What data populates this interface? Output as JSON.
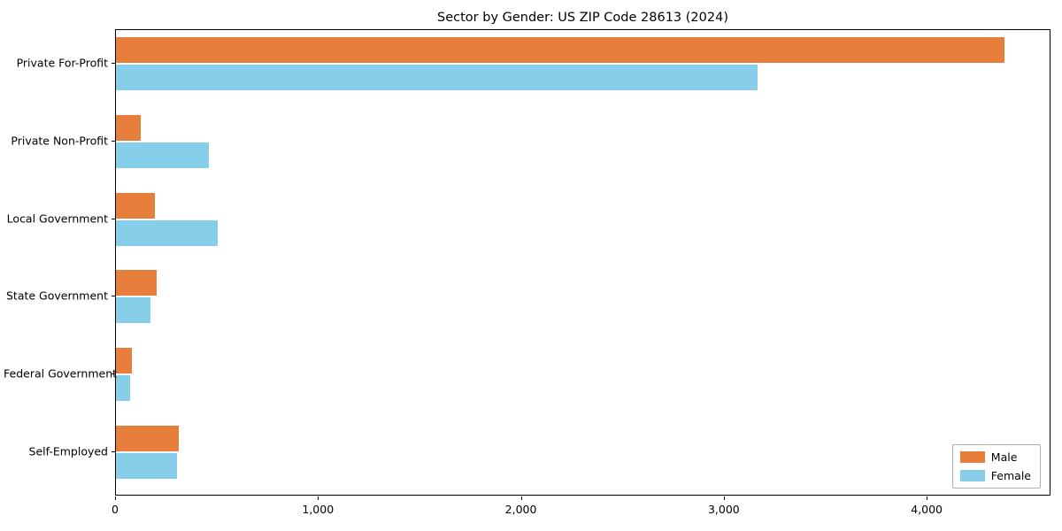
{
  "chart_data": {
    "type": "bar",
    "orientation": "horizontal",
    "title": "Sector by Gender: US ZIP Code 28613 (2024)",
    "categories": [
      "Private For-Profit",
      "Private Non-Profit",
      "Local Government",
      "State Government",
      "Federal Government",
      "Self-Employed"
    ],
    "series": [
      {
        "name": "Male",
        "color": "#e87e3c",
        "values": [
          4380,
          120,
          190,
          200,
          80,
          310
        ]
      },
      {
        "name": "Female",
        "color": "#87ceeb",
        "values": [
          3160,
          460,
          500,
          170,
          70,
          300
        ]
      }
    ],
    "xlabel": "",
    "ylabel": "",
    "xlim": [
      0,
      4610
    ],
    "xticks": [
      {
        "value": 0,
        "label": "0"
      },
      {
        "value": 1000,
        "label": "1,000"
      },
      {
        "value": 2000,
        "label": "2,000"
      },
      {
        "value": 3000,
        "label": "3,000"
      },
      {
        "value": 4000,
        "label": "4,000"
      }
    ],
    "grid": false,
    "legend_position": "lower right"
  }
}
